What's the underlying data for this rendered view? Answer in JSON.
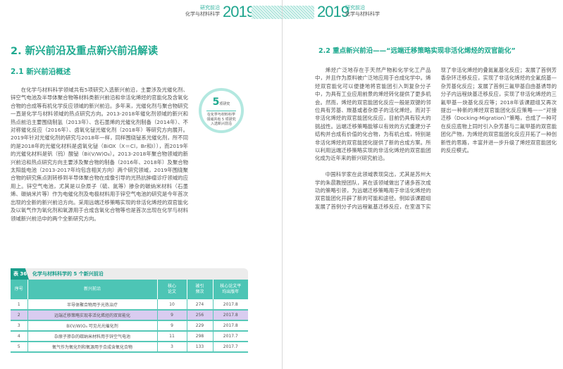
{
  "left_page": {
    "header": {
      "series": "研究前沿",
      "subject": "化学与材料科学",
      "year": "2019"
    },
    "heading": "2. 新兴前沿及重点新兴前沿解读",
    "subheading": "2.1 新兴前沿概述",
    "paragraph": "在化学与材料科学领域共有5项研究入选新兴前沿，主要涉及光催化剂、锌空气电池及半导体聚合物等材料类新兴前沿和非活化烯烃的官能化及含氧化合物的合成等有机化学反应领域的新兴前沿。多年来，光催化剂与聚合物研究一直是化学与材料领域的热点研究方向。2013-2018年催化剂领域的新兴和热点前沿主要围绕制氢（2013年）、含石墨烯的光催化剂制备（2014年）、不对称催化反应（2016年）、卤氧化铋光催化剂（2018年）等研究方向展开。2019年针对光催化剂的研究与2018年一样，同样围绕铋系光催化剂，所不同的是2018年的光催化材料是卤氧化铋（BiOX（X＝Cl，Br和I）），而2019年的光催化材料是钒（钨）酸铋（Bi(V/W)O₄）。2013-2018年聚合物领域的新兴前沿和热点研究方向主要涉及聚合物的制备（2016年、2018年）及聚合物太阳能电池（2013-2017年均包含相关方向）两个研究领域，2019年围绕聚合物的研究焦点则转移到半导体聚合物在成像引导的光热抗肿瘤诊疗领域的应用上。锌空气电池，尤其是以杂原子（硫、氮等）掺杂的碳纳米材料（石墨烯、碳纳米片等）作为电催化剂及电极材料用于锌空气电池的研究是今年首次出现的全新的新兴前沿方向。采用远端迁移策略实现的非活化烯烃的双官能化及以氧气作为氧化剂和氧源用于合成含氧化合物等也是首次出现在化学与材料领域新兴前沿中的两个全新研究方向。",
    "callout": {
      "number": "5",
      "unit": "项研究",
      "text": "在化学与材料科学领域共有 5 项研究入选新兴前沿"
    },
    "table": {
      "tag": "表 36",
      "title": "化学与材料科学的 5 个新兴前沿",
      "headers": [
        "序号",
        "新兴前沿",
        "核心论文",
        "被引频次",
        "核心论文平均出版年"
      ],
      "rows": [
        [
          "1",
          "半导体聚合物用于光热治疗",
          "10",
          "274",
          "2017.8"
        ],
        [
          "2",
          "远端迁移策略实现非活化烯烃的双官能化",
          "9",
          "256",
          "2017.8"
        ],
        [
          "3",
          "Bi(V/W)O₄ 可见光光催化剂",
          "9",
          "229",
          "2017.8"
        ],
        [
          "4",
          "杂原子掺杂的碳纳米材料用于锌空气电池",
          "11",
          "298",
          "2017.7"
        ],
        [
          "5",
          "氧气作为氧化剂和氧源用于合成含氧化合物",
          "3",
          "133",
          "2017.7"
        ]
      ],
      "highlight_row": 2,
      "colors": {
        "header": "#4dc5b5",
        "highlight": "#d9ccf0",
        "tag": "#1a9e8c"
      }
    }
  },
  "right_page": {
    "header": {
      "year": "2019",
      "series": "研究前沿",
      "subject": "化学与材料科学"
    },
    "heading": "2.2 重点新兴前沿——“远端迁移策略实现非活化烯烃的双官能化”",
    "paragraphs": [
      "烯烃广泛地存在于天然产物和化学化工产品中，并且作为原料被广泛地应用于合成化学中。烯烃双官能化可以便捷地将官能团引入到复杂分子中，为具有工业应用前景的烯烃转化提供了更多机会。然而，烯烃的双官能团化反应一般是双键的邻位具有芳基、羰基或者杂原子的活化烯烃。而对于非活化烯烃的双官能团化反应，目前仍具有较大的挑战性。远端迁移策略能够以有效的方式重建分子结构并合成有价值的化合物，为有机合成，特别是非活化烯烃的双官能团化提供了新的合成方案。所以利用远端迁移策略实现的非活化烯烃的双官能团化成为近年来的新兴研究前沿。",
      "中国科学家在此领域表现突出，尤其是苏州大学的朱晨教授团队，其在该领域做出了诸多首次成功的策略引领，为远端迁移策略用于非活化烯烃的双官能团化开辟了新的可能和途径。例如该课题组发展了首例分子内远程氰基迁移反应，在室温下实现了非活化烯烃的叠氮氰基化反应；发展了首例芳香杂环迁移反应，实现了非活化烯烃的全氟烷基—杂芳基化反应；发展了首例三氟甲基自由基诱导的分子内远程炔基迁移反应，实现了非活化烯烃的三氟甲基—炔基化反应等；2018年该课题组又再次提出一种新的烯烃双官能团化反应策略——“对接迁移（Docking-Migration）”策略，合成了一种可在反应底物上同时引入杂芳基与二氟甲基的双官能团化产物，为烯烃的双官能团化反应开拓了一种创新性的思路，丰富并进一步升级了烯烃双官能团化的反应模式。"
    ]
  },
  "accent_color": "#1ea98f"
}
